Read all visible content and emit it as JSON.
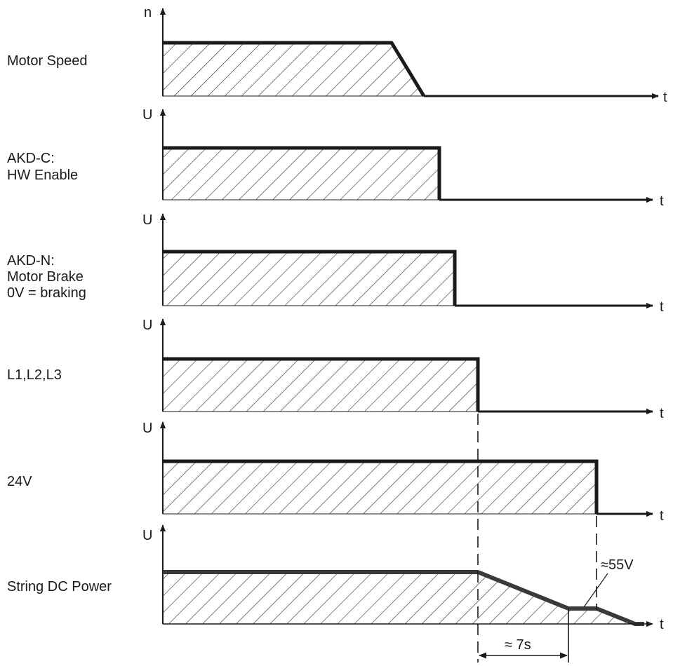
{
  "rows": [
    {
      "id": "motor-speed",
      "label_lines": [
        "Motor Speed"
      ],
      "y_axis": "n",
      "x_axis": "t"
    },
    {
      "id": "hw-enable",
      "label_lines": [
        "AKD-C:",
        "HW Enable"
      ],
      "y_axis": "U",
      "x_axis": "t"
    },
    {
      "id": "motor-brake",
      "label_lines": [
        "AKD-N:",
        "Motor Brake",
        "0V = braking"
      ],
      "y_axis": "U",
      "x_axis": "t"
    },
    {
      "id": "l1-l2-l3",
      "label_lines": [
        "L1,L2,L3"
      ],
      "y_axis": "U",
      "x_axis": "t"
    },
    {
      "id": "24v",
      "label_lines": [
        "24V"
      ],
      "y_axis": "U",
      "x_axis": "t"
    },
    {
      "id": "string-dc-power",
      "label_lines": [
        "String DC Power"
      ],
      "y_axis": "U",
      "x_axis": "t"
    }
  ],
  "annotations": {
    "voltage_plateau": "≈55V",
    "discharge_time": "≈ 7s"
  },
  "colors": {
    "line": "#1a1a1a",
    "background": "#ffffff"
  }
}
